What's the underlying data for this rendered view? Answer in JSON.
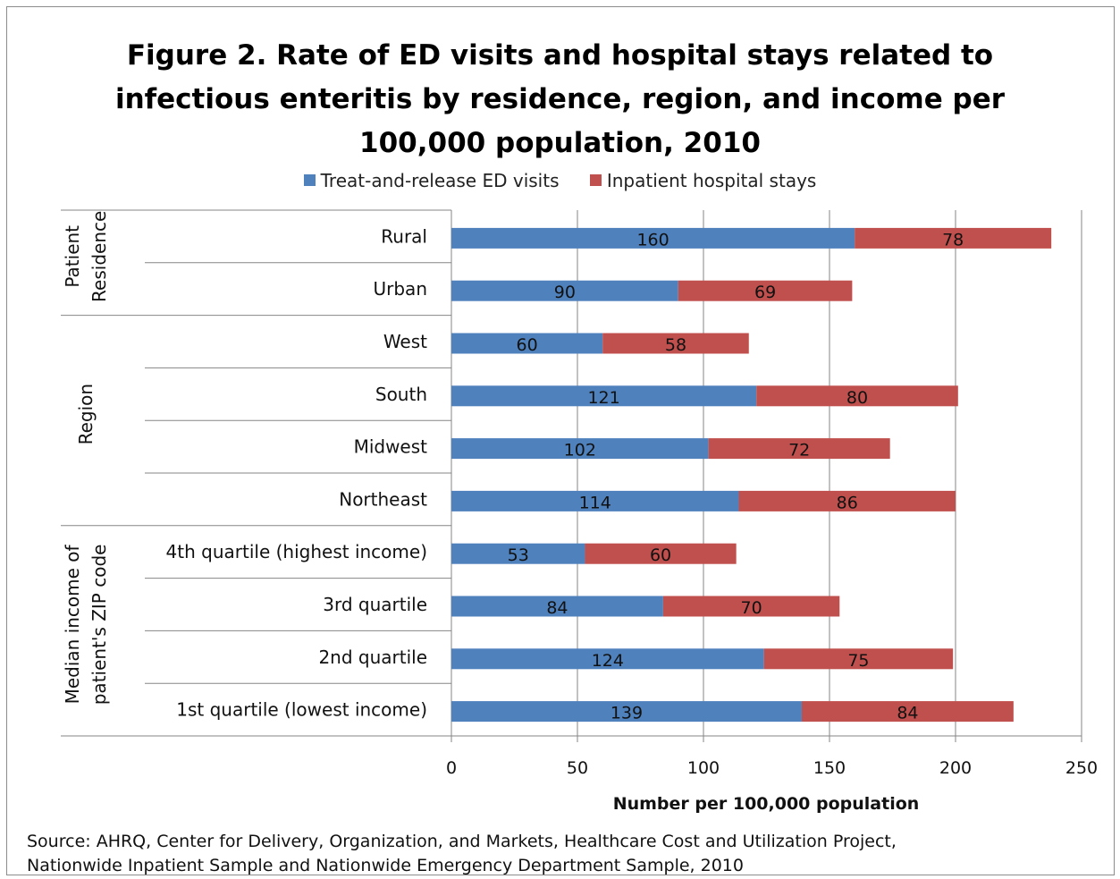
{
  "chart_data": {
    "type": "bar",
    "orientation": "horizontal",
    "stacked": true,
    "title": "Figure 2. Rate of ED visits and hospital stays related to infectious enteritis by residence, region, and income per 100,000 population, 2010",
    "title_lines": [
      "Figure 2. Rate of ED visits and hospital stays related to",
      "infectious enteritis by residence, region, and income per",
      "100,000 population, 2010"
    ],
    "xlabel": "Number per 100,000 population",
    "ylabel": "",
    "xlim": [
      0,
      250
    ],
    "xticks": [
      "0",
      "50",
      "100",
      "150",
      "200",
      "250"
    ],
    "grid": true,
    "legend_position": "top",
    "colors": {
      "ed": "#4f81bd",
      "inpatient": "#c0504d"
    },
    "categories": [
      "Rural",
      "Urban",
      "West",
      "South",
      "Midwest",
      "Northeast",
      "4th quartile (highest income)",
      "3rd quartile",
      "2nd quartile",
      "1st quartile (lowest income)"
    ],
    "groups": [
      {
        "label_lines": [
          "Patient",
          "Residence"
        ],
        "count": 2
      },
      {
        "label_lines": [
          "Region"
        ],
        "count": 4
      },
      {
        "label_lines": [
          "Median income of",
          "patient's ZIP code"
        ],
        "count": 4
      }
    ],
    "series": [
      {
        "name": "Treat-and-release ED visits",
        "values": [
          160,
          90,
          60,
          121,
          102,
          114,
          53,
          84,
          124,
          139
        ]
      },
      {
        "name": "Inpatient hospital stays",
        "values": [
          78,
          69,
          58,
          80,
          72,
          86,
          60,
          70,
          75,
          84
        ]
      }
    ]
  },
  "source": {
    "lines": [
      "Source: AHRQ, Center for Delivery, Organization, and Markets, Healthcare Cost and Utilization Project,",
      "Nationwide Inpatient Sample and Nationwide Emergency Department Sample, 2010"
    ]
  }
}
